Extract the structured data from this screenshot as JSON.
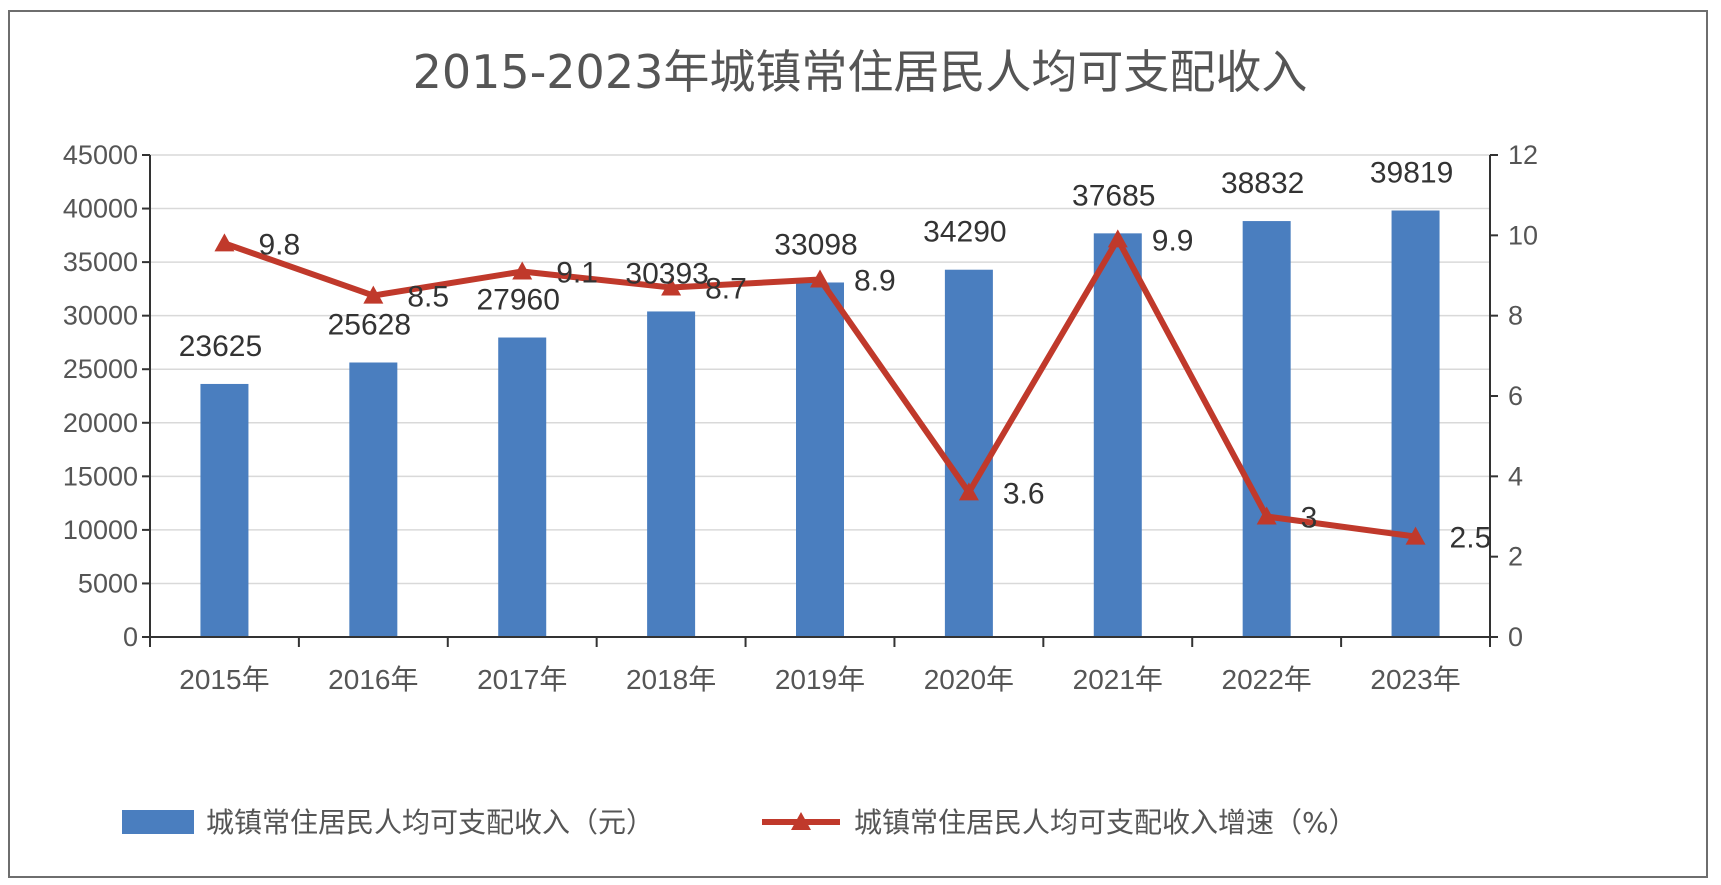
{
  "chart_data": {
    "type": "bar",
    "title": "2015-2023年城镇常住居民人均可支配收入",
    "categories": [
      "2015年",
      "2016年",
      "2017年",
      "2018年",
      "2019年",
      "2020年",
      "2021年",
      "2022年",
      "2023年"
    ],
    "series": [
      {
        "name": "城镇常住居民人均可支配收入（元）",
        "type": "bar",
        "axis": "left",
        "color": "#4a7ebf",
        "values": [
          23625,
          25628,
          27960,
          30393,
          33098,
          34290,
          37685,
          38832,
          39819
        ]
      },
      {
        "name": "城镇常住居民人均可支配收入增速（%）",
        "type": "line",
        "marker": "triangle",
        "axis": "right",
        "color": "#c0392b",
        "values": [
          9.8,
          8.5,
          9.1,
          8.7,
          8.9,
          3.6,
          9.9,
          3,
          2.5
        ]
      }
    ],
    "y_left": {
      "min": 0,
      "max": 45000,
      "step": 5000
    },
    "y_right": {
      "min": 0,
      "max": 12,
      "step": 2
    },
    "grid": true,
    "legend_position": "bottom"
  }
}
